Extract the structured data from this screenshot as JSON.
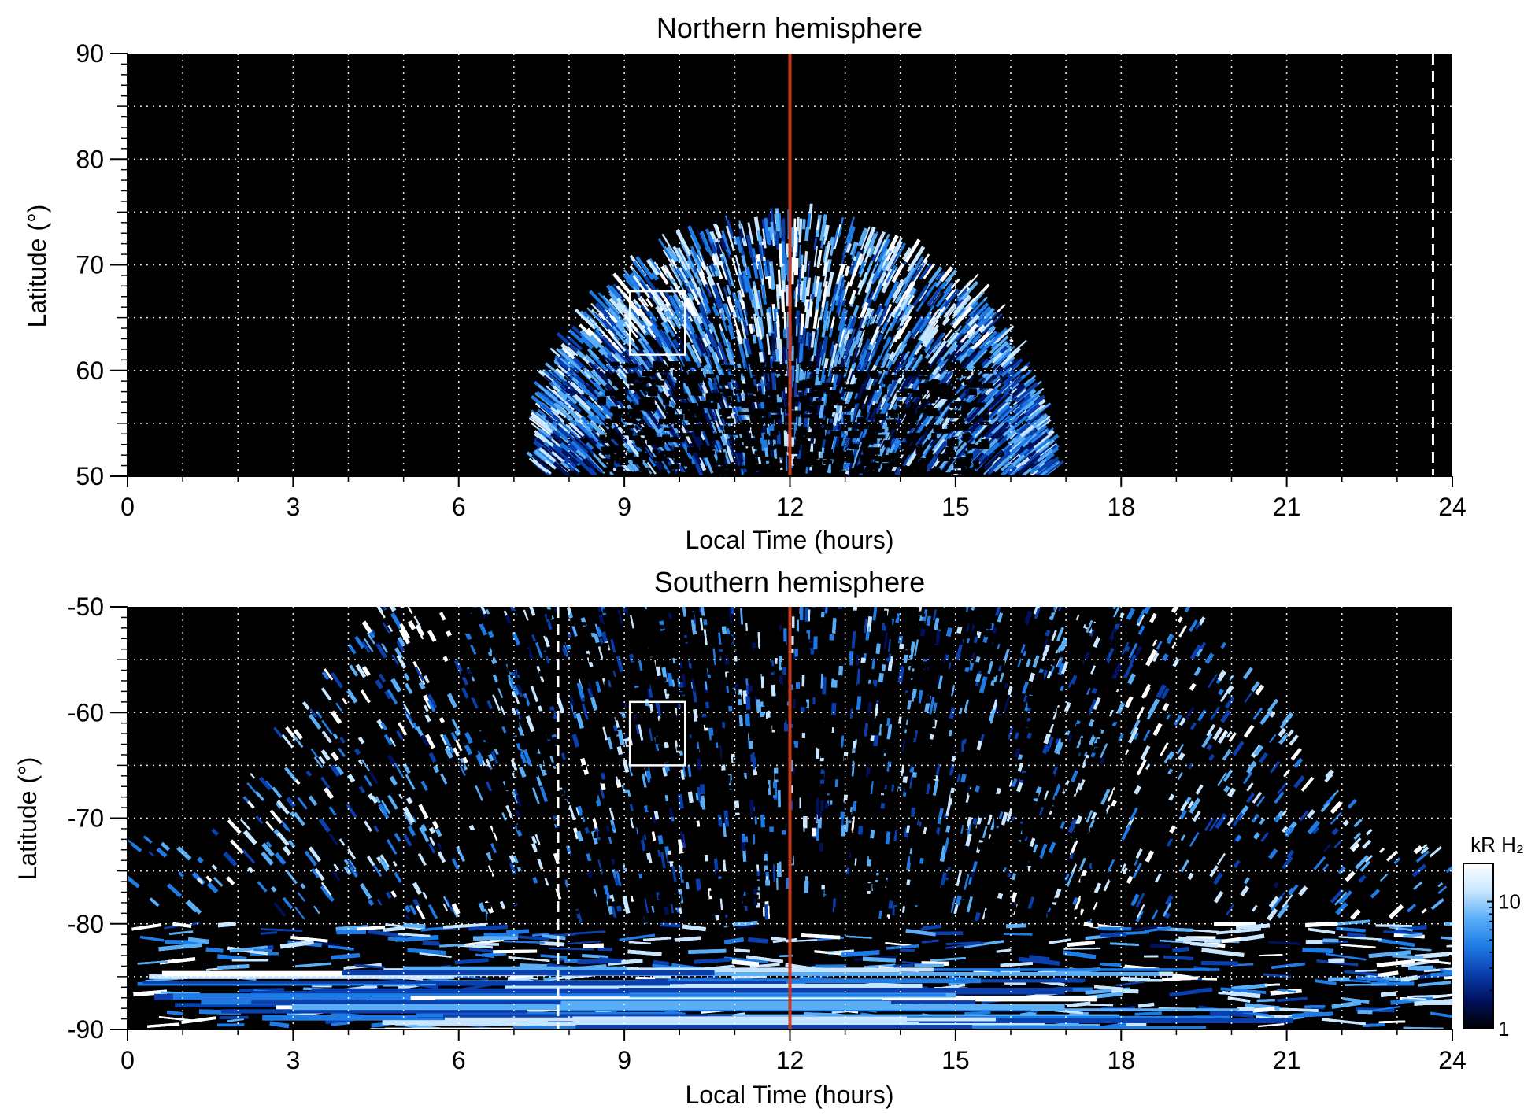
{
  "chart_data": [
    {
      "type": "heatmap",
      "title": "Northern hemisphere",
      "xlabel": "Local Time (hours)",
      "ylabel": "Latitude (°)",
      "xlim": [
        0,
        24
      ],
      "ylim": [
        50,
        90
      ],
      "x_ticks": [
        "0",
        "3",
        "6",
        "9",
        "12",
        "15",
        "18",
        "21",
        "24"
      ],
      "y_ticks": [
        "50",
        "60",
        "70",
        "80",
        "90"
      ],
      "grid": true,
      "background": "#000000",
      "emission_region": {
        "description_shape": "dome",
        "lt_min_at_base": 7.6,
        "lt_max_at_base": 16.6,
        "peak_lt": 12,
        "peak_latitude": 73.5,
        "bright_band_latitude": [
          62,
          70
        ]
      },
      "box": {
        "lt": [
          9.1,
          10.1
        ],
        "lat": [
          61.5,
          67.5
        ]
      },
      "red_line_lt": 12,
      "dashed_line_lt": 23.65
    },
    {
      "type": "heatmap",
      "title": "Southern hemisphere",
      "xlabel": "Local Time (hours)",
      "ylabel": "Latitude (°)",
      "xlim": [
        0,
        24
      ],
      "ylim": [
        -90,
        -50
      ],
      "x_ticks": [
        "0",
        "3",
        "6",
        "9",
        "12",
        "15",
        "18",
        "21",
        "24"
      ],
      "y_ticks": [
        "-50",
        "-60",
        "-70",
        "-80",
        "-90"
      ],
      "grid": true,
      "background": "#000000",
      "emission_region": {
        "description_shape": "inverted-dome",
        "lt_min_at_top": 4.9,
        "lt_max_at_top": 19.6,
        "lt_min_at_pole": 0,
        "lt_max_at_pole": 24,
        "bright_arcs_lt": [
          5.9,
          18.4
        ]
      },
      "box": {
        "lt": [
          9.1,
          10.1
        ],
        "lat": [
          -65,
          -59
        ]
      },
      "red_line_lt": 12,
      "dashed_line_lt": 7.8
    }
  ],
  "colorbar": {
    "label": "kR H₂",
    "scale": "log",
    "range": [
      1,
      20
    ],
    "tick_labels": [
      "10",
      "1"
    ],
    "colors": [
      "#000000",
      "#00105a",
      "#0a3fae",
      "#1e7be6",
      "#5aaef6",
      "#c8e6ff",
      "#ffffff"
    ]
  },
  "colors": {
    "red_line": "#cc3a1e",
    "grid": "#ffffff",
    "box": "#ffffff"
  }
}
